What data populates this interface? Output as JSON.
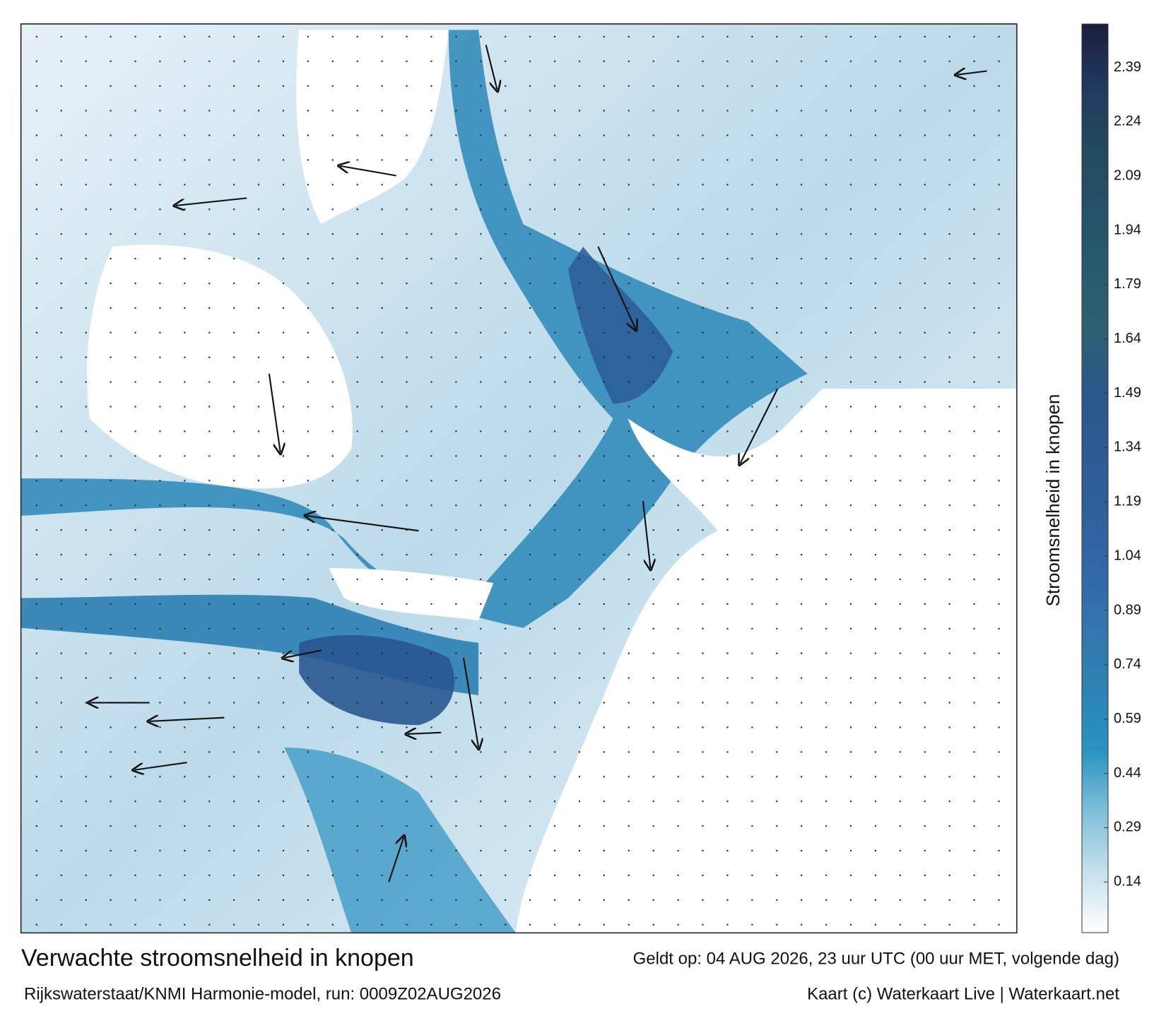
{
  "map": {
    "title": "Verwachte stroomsnelheid in knopen",
    "valid_time": "Geldt op: 04 AUG 2026, 23 uur UTC (00 uur MET, volgende dag)",
    "source": "Rijkswaterstaat/KNMI Harmonie-model, run: 0009Z02AUG2026",
    "credit": "Kaart (c) Waterkaart Live | Waterkaart.net"
  },
  "colorbar": {
    "label": "Stroomsnelheid in knopen",
    "lim": [
      0,
      2.51
    ],
    "ticks": [
      0.14,
      0.29,
      0.44,
      0.59,
      0.74,
      0.89,
      1.04,
      1.19,
      1.34,
      1.49,
      1.64,
      1.79,
      1.94,
      2.09,
      2.24,
      2.39
    ],
    "colors": [
      "#ffffff",
      "#c6e0ec",
      "#7fbfd9",
      "#2b93c0",
      "#2b84b4",
      "#3375ad",
      "#3268a6",
      "#2f5f9c",
      "#2d5a92",
      "#2b5888",
      "#2e6070",
      "#285a6c",
      "#25506a",
      "#234a5c",
      "#20385e",
      "#1b1d3e"
    ]
  }
}
